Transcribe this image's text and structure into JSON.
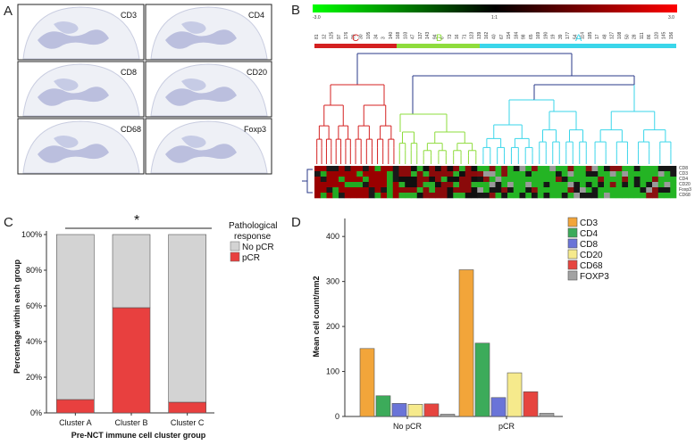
{
  "panels": {
    "a": {
      "letter": "A",
      "tiles": [
        "CD3",
        "CD4",
        "CD8",
        "CD20",
        "CD68",
        "Foxp3"
      ]
    },
    "b": {
      "letter": "B",
      "scale": {
        "min_label": "-3.0",
        "mid_label": "1:1",
        "max_label": "3.0"
      },
      "clusters": [
        {
          "label": "C",
          "color": "#d42020"
        },
        {
          "label": "B",
          "color": "#8edc3c"
        },
        {
          "label": "A",
          "color": "#3ad6ea"
        }
      ],
      "row_labels": [
        "CD8",
        "CD3",
        "CD4",
        "CD20",
        "Foxp3",
        "CD68"
      ],
      "sample_ids": [
        "81",
        "12",
        "125",
        "97",
        "176",
        "79",
        "30",
        "105",
        "34",
        "3",
        "140",
        "168",
        "103",
        "47",
        "137",
        "143",
        "94",
        "6",
        "73",
        "16",
        "71",
        "123",
        "139",
        "162",
        "40",
        "67",
        "154",
        "184",
        "98",
        "65",
        "169",
        "190",
        "19",
        "39",
        "177",
        "54",
        "114",
        "185",
        "17",
        "48",
        "127",
        "108",
        "50",
        "28",
        "111",
        "86",
        "120",
        "145",
        "156"
      ]
    },
    "c": {
      "letter": "C",
      "significance": "*",
      "legend_title": [
        "Pathological",
        "response"
      ],
      "colors": {
        "No pCR": "#d3d3d3",
        "pCR": "#e8403f"
      }
    },
    "d": {
      "letter": "D",
      "colors": {
        "CD3": "#f2a53a",
        "CD4": "#3cab5a",
        "CD8": "#6a74d8",
        "CD20": "#f6ea8c",
        "CD68": "#e6453f",
        "FOXP3": "#a2a2a2"
      }
    }
  },
  "chart_data": [
    {
      "panel": "C",
      "type": "bar",
      "stacked": true,
      "categories": [
        "Cluster A",
        "Cluster B",
        "Cluster C"
      ],
      "series": [
        {
          "name": "pCR",
          "values": [
            7.5,
            59,
            6
          ]
        },
        {
          "name": "No pCR",
          "values": [
            92.5,
            41,
            94
          ]
        }
      ],
      "xlabel": "Pre-NCT immune cell cluster group",
      "ylabel": "Percentage within each group",
      "ylim": [
        0,
        100
      ],
      "yticks": [
        "0%",
        "20%",
        "40%",
        "60%",
        "80%",
        "100%"
      ],
      "legend_position": "right"
    },
    {
      "panel": "D",
      "type": "bar",
      "categories": [
        "No pCR",
        "pCR"
      ],
      "series": [
        {
          "name": "CD3",
          "values": [
            151,
            326
          ]
        },
        {
          "name": "CD4",
          "values": [
            46,
            163
          ]
        },
        {
          "name": "CD8",
          "values": [
            29,
            42
          ]
        },
        {
          "name": "CD20",
          "values": [
            27,
            97
          ]
        },
        {
          "name": "CD68",
          "values": [
            28,
            55
          ]
        },
        {
          "name": "FOXP3",
          "values": [
            5,
            7
          ]
        }
      ],
      "xlabel": "",
      "ylabel": "Mean cell count/mm2",
      "ylim": [
        0,
        440
      ],
      "yticks": [
        "0",
        "100",
        "200",
        "300",
        "400"
      ],
      "legend_position": "top-right"
    }
  ]
}
